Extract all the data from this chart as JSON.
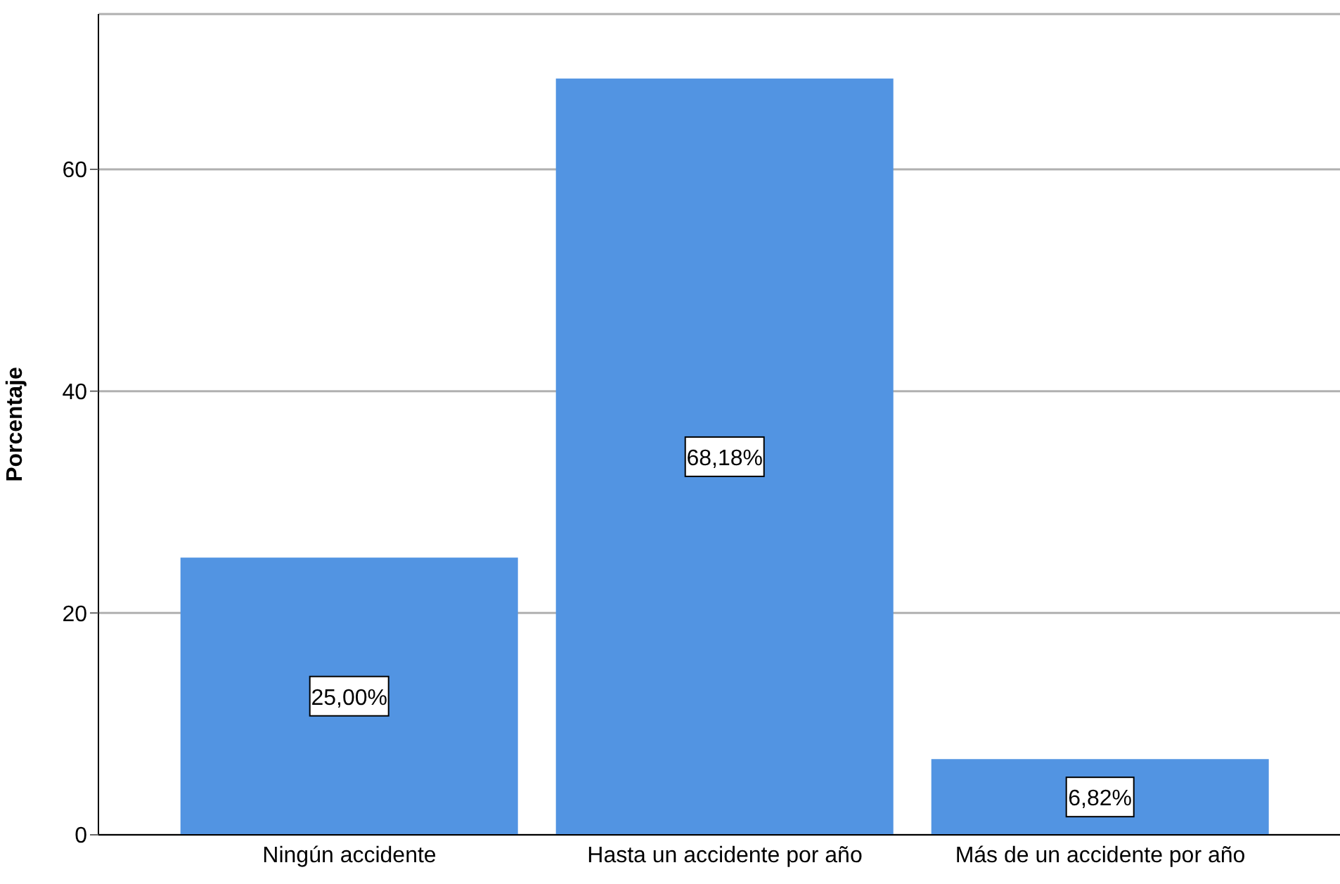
{
  "chart_data": {
    "type": "bar",
    "ylabel": "Porcentaje",
    "categories": [
      "Ningún accidente",
      "Hasta un accidente por año",
      "Más de un accidente por año"
    ],
    "values": [
      25.0,
      68.18,
      6.82
    ],
    "value_labels": [
      "25,00%",
      "68,18%",
      "6,82%"
    ],
    "color": "#5294e2",
    "ylim": [
      0,
      74
    ],
    "yticks": [
      0,
      20,
      40,
      60
    ],
    "grid": "y"
  }
}
